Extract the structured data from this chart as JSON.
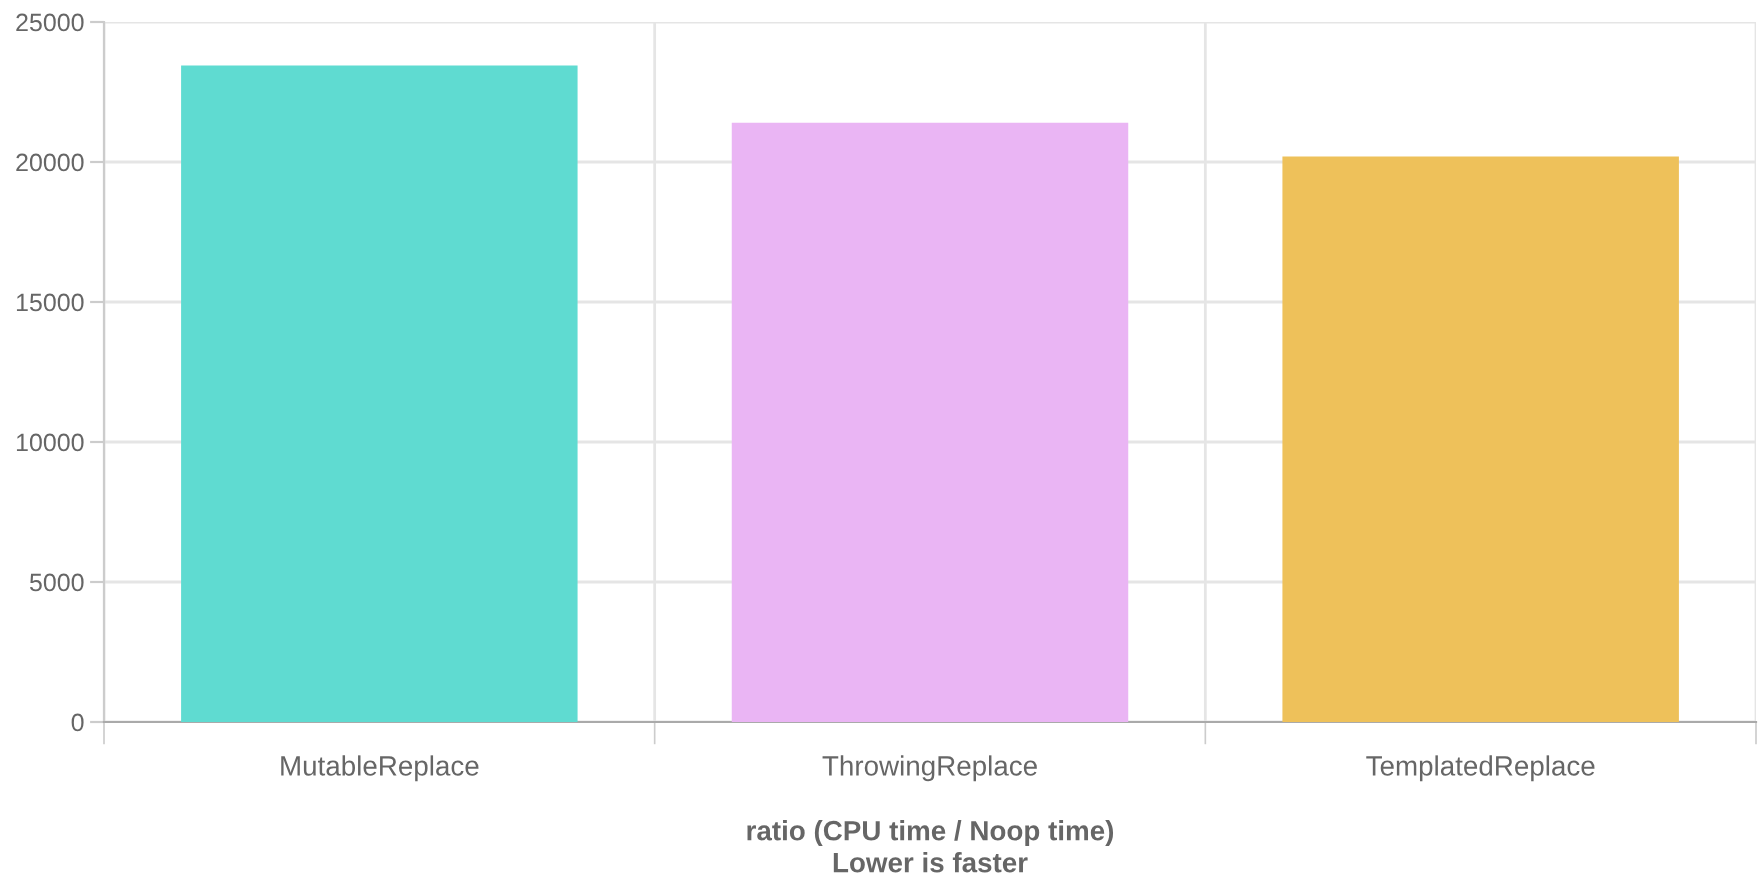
{
  "chart_data": {
    "type": "bar",
    "xlabel": "ratio (CPU time / Noop time)\nLower is faster",
    "categories": [
      "MutableReplace",
      "ThrowingReplace",
      "TemplatedReplace"
    ],
    "values": [
      23450,
      21400,
      20200
    ],
    "colors": [
      "#5fdbd1",
      "#eab5f4",
      "#eec15a"
    ],
    "ylim": [
      0,
      25000
    ],
    "yticks": [
      0,
      5000,
      10000,
      15000,
      20000,
      25000
    ],
    "grid": true,
    "legend": false
  }
}
